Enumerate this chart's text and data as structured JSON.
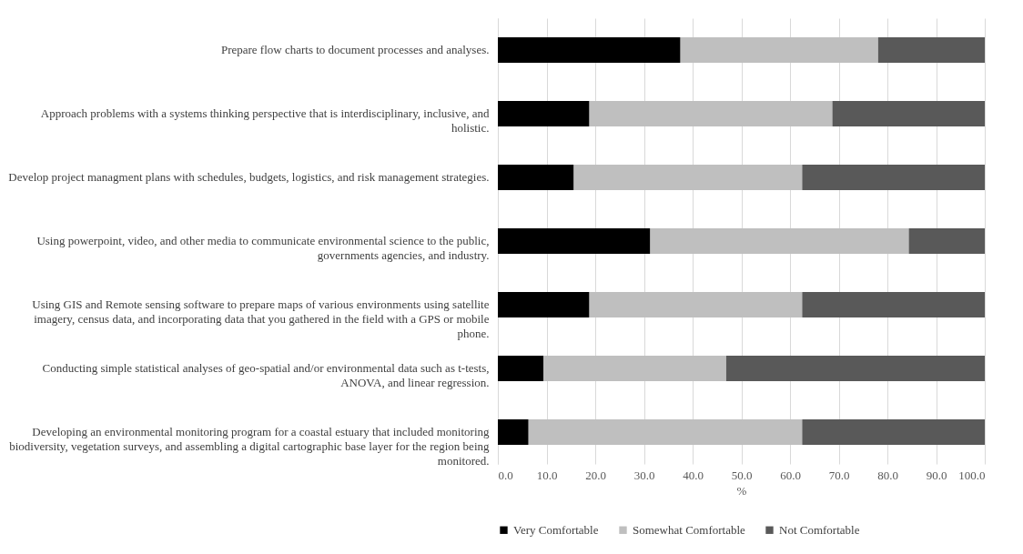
{
  "chart_data": {
    "type": "bar",
    "orientation": "horizontal",
    "stacked": true,
    "xlabel": "%",
    "categories": [
      "Prepare flow charts to document processes and analyses.",
      "Approach problems with a systems thinking perspective that is interdisciplinary, inclusive, and holistic.",
      "Develop project managment plans with schedules, budgets, logistics, and risk management strategies.",
      "Using powerpoint, video, and other media to communicate environmental science to the public, governments agencies, and industry.",
      "Using GIS and Remote sensing software to prepare maps of various environments using satellite imagery, census data, and incorporating data that you gathered in the field with a GPS or mobile phone.",
      "Conducting simple statistical analyses of geo-spatial and/or environmental data such as t-tests, ANOVA, and linear regression.",
      "Developing an environmental monitoring program for a coastal estuary that included monitoring biodiversity, vegetation surveys, and assembling a digital cartographic base layer for the region being monitored."
    ],
    "series": [
      {
        "name": "Very Comfortable",
        "color": "#000000",
        "values": [
          37.5,
          18.8,
          15.6,
          31.3,
          18.8,
          9.4,
          6.3
        ]
      },
      {
        "name": "Somewhat Comfortable",
        "color": "#bfbfbf",
        "values": [
          40.6,
          49.9,
          46.9,
          53.1,
          43.7,
          37.5,
          56.2
        ]
      },
      {
        "name": "Not Comfortable",
        "color": "#595959",
        "values": [
          21.9,
          31.3,
          37.5,
          15.6,
          37.5,
          53.1,
          37.5
        ]
      }
    ],
    "xlim": [
      0,
      100
    ],
    "xticks": [
      {
        "value": 0,
        "label": "0.0"
      },
      {
        "value": 10,
        "label": "10.0"
      },
      {
        "value": 20,
        "label": "20.0"
      },
      {
        "value": 30,
        "label": "30.0"
      },
      {
        "value": 40,
        "label": "40.0"
      },
      {
        "value": 50,
        "label": "50.0"
      },
      {
        "value": 60,
        "label": "60.0"
      },
      {
        "value": 70,
        "label": "70.0"
      },
      {
        "value": 80,
        "label": "80.0"
      },
      {
        "value": 90,
        "label": "90.0"
      },
      {
        "value": 100,
        "label": "100.0"
      }
    ],
    "grid": "x",
    "legend": "bottom"
  }
}
